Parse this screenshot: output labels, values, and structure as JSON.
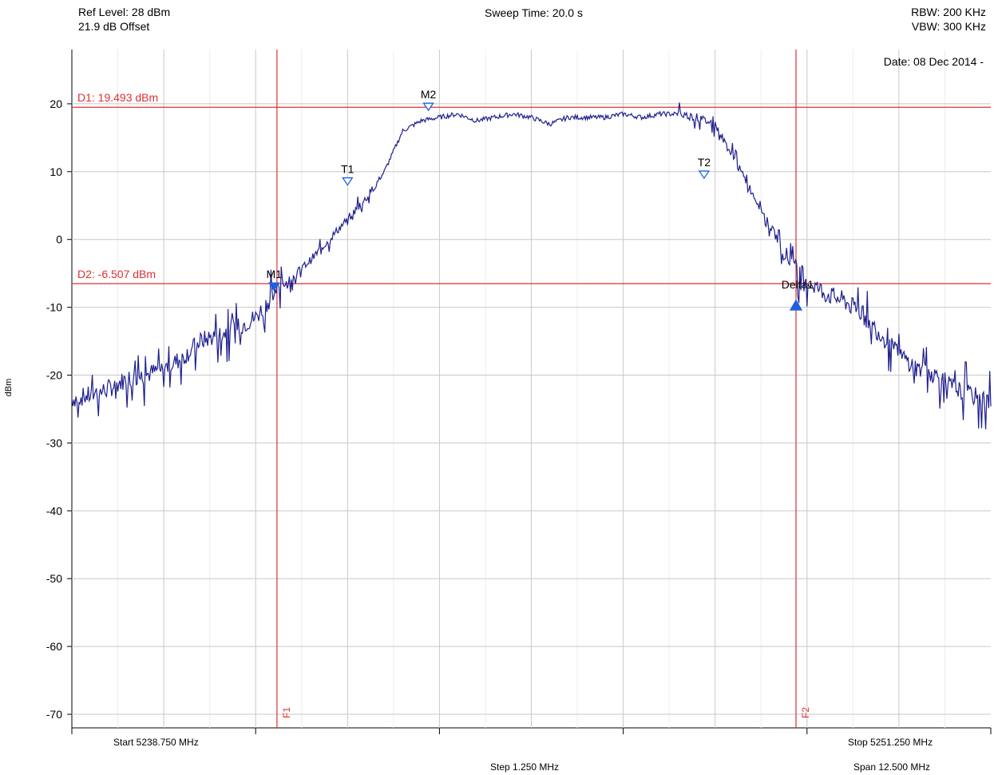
{
  "header": {
    "ref_level": "Ref Level: 28 dBm",
    "offset": "21.9 dB Offset",
    "sweep_time": "Sweep Time: 20.0 s",
    "rbw": "RBW: 200 KHz",
    "vbw": "VBW: 300 KHz",
    "date": "Date: 08 Dec 2014 -"
  },
  "footer": {
    "start": "Start 5238.750 MHz",
    "stop": "Stop 5251.250 MHz",
    "step": "Step 1.250 MHz",
    "span": "Span 12.500 MHz"
  },
  "colors": {
    "trace": "#1f1f8f",
    "marker": "#1e5fe0",
    "line": "#e03030",
    "grid": "#c8c8c8"
  },
  "chart_data": {
    "type": "line",
    "ylabel": "dBm",
    "xlabel": "",
    "xlim": [
      5238.75,
      5251.25
    ],
    "ylim": [
      -72,
      28
    ],
    "yticks": [
      20,
      10,
      0,
      -10,
      -20,
      -30,
      -40,
      -50,
      -60,
      -70
    ],
    "grid": true,
    "series": [
      {
        "x": [
          5238.75,
          5239.0,
          5239.25,
          5239.5,
          5239.75,
          5240.0,
          5240.25,
          5240.5,
          5240.75,
          5241.0,
          5241.25,
          5241.5,
          5241.6,
          5241.75,
          5242.0,
          5242.25,
          5242.5,
          5242.75,
          5243.0,
          5243.25,
          5243.5,
          5243.75,
          5244.0,
          5244.25,
          5244.5,
          5244.75,
          5245.0,
          5245.25,
          5245.5,
          5245.75,
          5246.0,
          5246.25,
          5246.5,
          5246.75,
          5247.0,
          5247.25,
          5247.5,
          5247.6,
          5247.75,
          5248.0,
          5248.25,
          5248.5,
          5248.75,
          5249.0,
          5249.25,
          5249.5,
          5249.75,
          5250.0,
          5250.25,
          5250.5,
          5250.75,
          5251.0,
          5251.25
        ],
        "y": [
          -23.5,
          -23,
          -22,
          -20.5,
          -20,
          -19,
          -17.5,
          -15,
          -14,
          -13,
          -11.5,
          -8,
          -7,
          -5.5,
          -3,
          0,
          3,
          6,
          10,
          16,
          17.5,
          18,
          18.5,
          17.5,
          18,
          18.5,
          18,
          17,
          18,
          18,
          18,
          18.5,
          18,
          18.5,
          18.5,
          18,
          17,
          15,
          12,
          7,
          2,
          -3,
          -6,
          -8,
          -9,
          -11,
          -14,
          -17,
          -19,
          -20,
          -22,
          -23,
          -24
        ]
      }
    ],
    "markers": [
      {
        "label": "M1",
        "x": 5241.5,
        "y": -7.0,
        "style": "filled-down"
      },
      {
        "label": "M2",
        "x": 5243.6,
        "y": 19.5,
        "style": "hollow-down"
      },
      {
        "label": "T1",
        "x": 5242.5,
        "y": 8.5,
        "style": "hollow-down"
      },
      {
        "label": "T2",
        "x": 5247.35,
        "y": 9.5,
        "style": "hollow-down"
      },
      {
        "label": "Delta1",
        "x": 5248.6,
        "y": -9.8,
        "style": "filled-up"
      }
    ],
    "hlines": [
      {
        "label": "D1: 19.493 dBm",
        "y": 19.493
      },
      {
        "label": "D2: -6.507 dBm",
        "y": -6.507
      }
    ],
    "vlines": [
      {
        "label": "F1",
        "x": 5241.54
      },
      {
        "label": "F2",
        "x": 5248.6
      }
    ]
  }
}
